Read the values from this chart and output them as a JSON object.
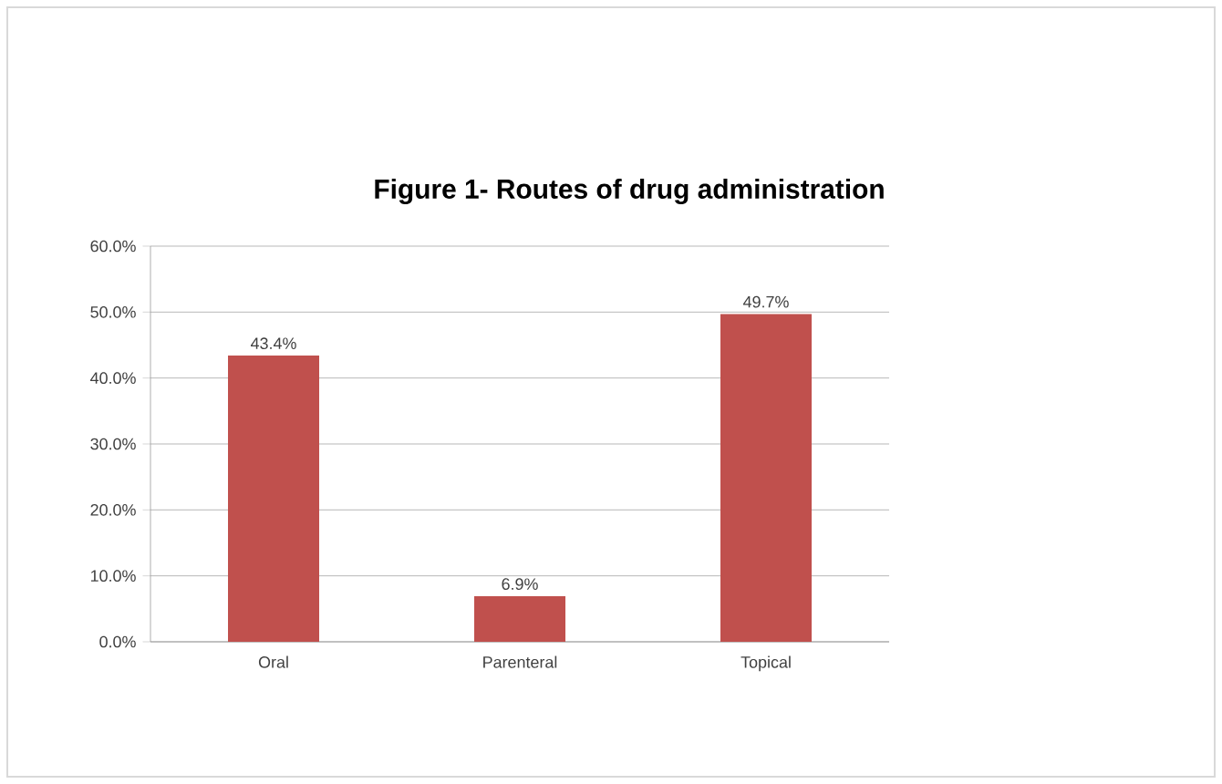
{
  "chart_data": {
    "type": "bar",
    "title": "Figure 1- Routes of drug administration",
    "categories": [
      "Oral",
      "Parenteral",
      "Topical"
    ],
    "values": [
      43.4,
      6.9,
      49.7
    ],
    "value_labels": [
      "43.4%",
      "6.9%",
      "49.7%"
    ],
    "color": "#c0504d",
    "ylim": [
      0,
      60
    ],
    "yticks": [
      {
        "value": 0,
        "label": "0.0%"
      },
      {
        "value": 10,
        "label": "10.0%"
      },
      {
        "value": 20,
        "label": "20.0%"
      },
      {
        "value": 30,
        "label": "30.0%"
      },
      {
        "value": 40,
        "label": "40.0%"
      },
      {
        "value": 50,
        "label": "50.0%"
      },
      {
        "value": 60,
        "label": "60.0%"
      }
    ],
    "grid": true
  }
}
